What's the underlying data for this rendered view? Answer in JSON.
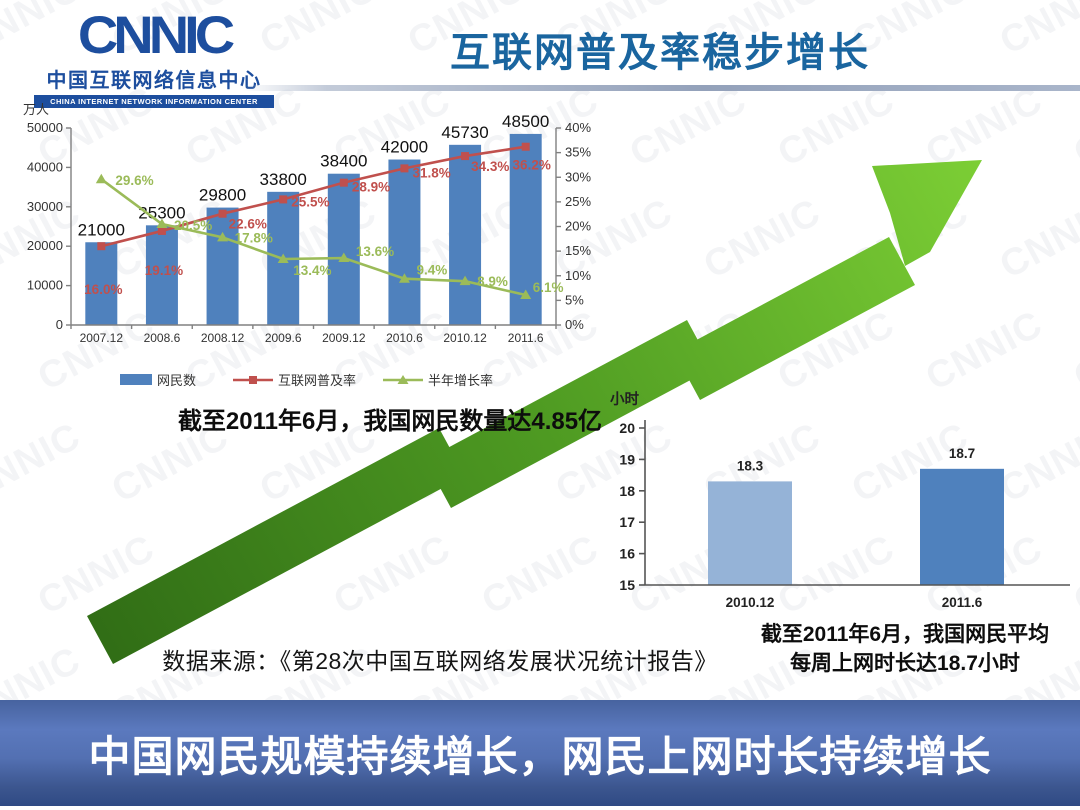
{
  "header": {
    "logo": {
      "acronym": "CNNIC",
      "name_cn": "中国互联网络信息中心",
      "name_en": "CHINA INTERNET NETWORK INFORMATION CENTER"
    },
    "title": "互联网普及率稳步增长"
  },
  "watermark_text": "CNNIC",
  "chart_data": [
    {
      "type": "bar",
      "name": "netizen-scale-and-penetration-chart",
      "unit_label": "万人",
      "categories": [
        "2007.12",
        "2008.6",
        "2008.12",
        "2009.6",
        "2009.12",
        "2010.6",
        "2010.12",
        "2011.6"
      ],
      "series": [
        {
          "name": "网民数",
          "type": "bar",
          "axis": "left",
          "color": "#4F81BD",
          "values": [
            21000,
            25300,
            29800,
            33800,
            38400,
            42000,
            45730,
            48500
          ],
          "value_labels": [
            "21000",
            "25300",
            "29800",
            "33800",
            "38400",
            "42000",
            "45730",
            "48500"
          ]
        },
        {
          "name": "互联网普及率",
          "type": "line",
          "marker": "square",
          "axis": "right",
          "color": "#C0504D",
          "values": [
            16.0,
            19.1,
            22.6,
            25.5,
            28.9,
            31.8,
            34.3,
            36.2
          ],
          "value_labels": [
            "16.0%",
            "19.1%",
            "22.6%",
            "25.5%",
            "28.9%",
            "31.8%",
            "34.3%",
            "36.2%"
          ]
        },
        {
          "name": "半年增长率",
          "type": "line",
          "marker": "triangle",
          "axis": "right",
          "color": "#9BBB59",
          "values": [
            29.6,
            20.5,
            17.8,
            13.4,
            13.6,
            9.4,
            8.9,
            6.1
          ],
          "value_labels": [
            "29.6%",
            "20.5%",
            "17.8%",
            "13.4%",
            "13.6%",
            "9.4%",
            "8.9%",
            "6.1%"
          ]
        }
      ],
      "left_axis": {
        "min": 0,
        "max": 50000,
        "step": 10000
      },
      "right_axis": {
        "min": 0,
        "max": 40,
        "step": 5,
        "suffix": "%"
      },
      "legend_position": "bottom",
      "grid": false
    },
    {
      "type": "bar",
      "name": "weekly-online-hours-chart",
      "unit_label": "小时",
      "categories": [
        "2010.12",
        "2011.6"
      ],
      "values": [
        18.3,
        18.7
      ],
      "value_labels": [
        "18.3",
        "18.7"
      ],
      "bar_colors": [
        "#95B3D7",
        "#4F81BD"
      ],
      "ylim": [
        15,
        20
      ],
      "ystep": 1,
      "grid": false
    }
  ],
  "captions": {
    "chart1": "截至2011年6月，我国网民数量达4.85亿",
    "chart2_line1": "截至2011年6月，我国网民平均",
    "chart2_line2": "每周上网时长达18.7小时",
    "source": "数据来源：《第28次中国互联网络发展状况统计报告》"
  },
  "banner": {
    "text": "中国网民规模持续增长，网民上网时长持续增长"
  },
  "colors": {
    "title": "#1A659F",
    "logo_blue": "#1D4E9E",
    "bar_blue": "#4F81BD",
    "bar_light_blue": "#95B3D7",
    "line_red": "#C0504D",
    "line_green": "#9BBB59",
    "arrow_dark": "#2F6B15",
    "arrow_mid": "#4E9A22",
    "arrow_light": "#7CCE35",
    "banner_blue": "#5370B2"
  }
}
